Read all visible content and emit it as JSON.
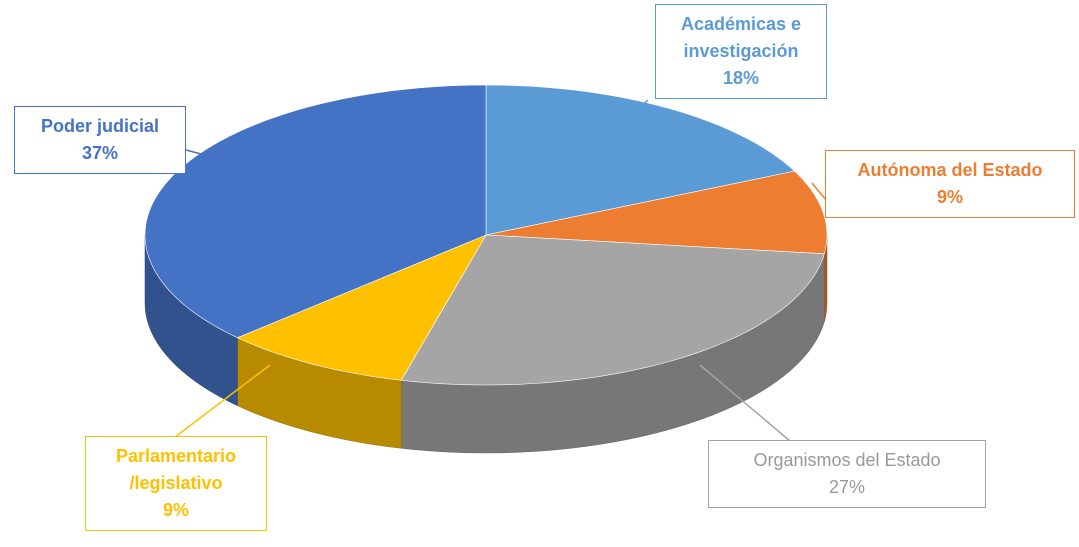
{
  "chart_data": {
    "type": "pie3d",
    "categories": [
      "Académicas e investigación",
      "Autónoma del Estado",
      "Organismos del Estado",
      "Parlamentario /legislativo",
      "Poder judicial"
    ],
    "values": [
      18,
      9,
      27,
      9,
      37
    ],
    "value_labels": [
      "18%",
      "9%",
      "27%",
      "9%",
      "37%"
    ],
    "colors": [
      "#5b9bd5",
      "#ed7d31",
      "#a5a5a5",
      "#ffc000",
      "#4472c4"
    ]
  }
}
